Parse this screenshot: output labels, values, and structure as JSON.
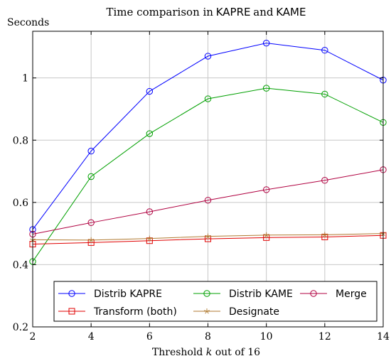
{
  "chart_data": {
    "type": "line",
    "title_prefix": "Time comparison in",
    "title_kapre": "KAPRE",
    "title_and": "and",
    "title_kame": "KAME",
    "ylabel": "Seconds",
    "xlabel_prefix": "Threshold",
    "xlabel_var": "k",
    "xlabel_suffix": "out of 16",
    "x": [
      2,
      4,
      6,
      8,
      10,
      12,
      14
    ],
    "xlim": [
      2,
      14
    ],
    "ylim": [
      0.2,
      1.15
    ],
    "xticks": [
      2,
      4,
      6,
      8,
      10,
      12,
      14
    ],
    "yticks": [
      0.2,
      0.4,
      0.6,
      0.8,
      1
    ],
    "ytick_labels": [
      "0.2",
      "0.4",
      "0.6",
      "0.8",
      "1"
    ],
    "grid": true,
    "legend_position": "bottom",
    "series": [
      {
        "name": "Distrib KAPRE",
        "color": "#0000ff",
        "marker": "circle",
        "values": [
          0.513,
          0.765,
          0.957,
          1.07,
          1.112,
          1.089,
          0.993
        ]
      },
      {
        "name": "Distrib KAME",
        "color": "#00a000",
        "marker": "circle",
        "values": [
          0.41,
          0.683,
          0.821,
          0.933,
          0.967,
          0.948,
          0.857
        ]
      },
      {
        "name": "Merge",
        "color": "#b00040",
        "marker": "circle",
        "values": [
          0.498,
          0.535,
          0.57,
          0.607,
          0.641,
          0.671,
          0.705
        ]
      },
      {
        "name": "Transform (both)",
        "color": "#e00000",
        "marker": "square",
        "values": [
          0.466,
          0.471,
          0.477,
          0.483,
          0.487,
          0.489,
          0.494
        ]
      },
      {
        "name": "Designate",
        "color": "#b07a30",
        "marker": "star",
        "values": [
          0.48,
          0.479,
          0.484,
          0.491,
          0.495,
          0.496,
          0.5
        ]
      }
    ],
    "legend_rows": [
      [
        {
          "name": "Distrib KAPRE",
          "color": "#0000ff",
          "marker": "circle"
        },
        {
          "name": "Distrib KAME",
          "color": "#00a000",
          "marker": "circle"
        },
        {
          "name": "Merge",
          "color": "#b00040",
          "marker": "circle"
        }
      ],
      [
        {
          "name": "Transform (both)",
          "color": "#e00000",
          "marker": "square"
        },
        {
          "name": "Designate",
          "color": "#b07a30",
          "marker": "star"
        }
      ]
    ]
  }
}
